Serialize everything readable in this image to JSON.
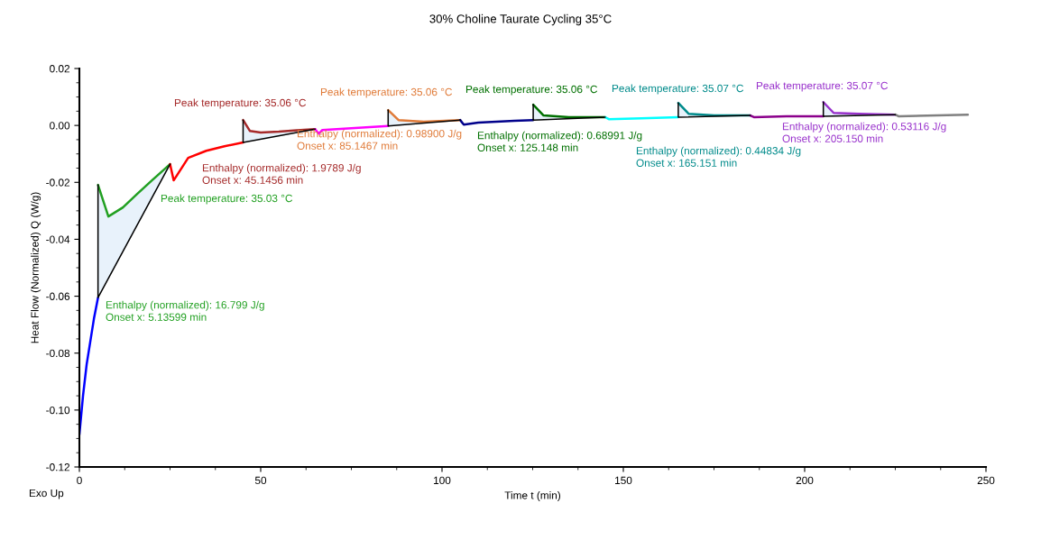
{
  "chart_data": {
    "type": "line",
    "title": "30% Choline Taurate Cycling 35°C",
    "xlabel": "Time t (min)",
    "ylabel": "Heat Flow (Normalized) Q (W/g)",
    "xlim": [
      0,
      250
    ],
    "xticks": [
      0,
      50,
      100,
      150,
      200,
      250
    ],
    "ylim": [
      -0.12,
      0.02
    ],
    "yticks": [
      {
        "value": -0.12,
        "label": "-0.12"
      },
      {
        "value": -0.1,
        "label": "-0.10"
      },
      {
        "value": -0.08,
        "label": "-0.08"
      },
      {
        "value": -0.06,
        "label": "-0.06"
      },
      {
        "value": -0.04,
        "label": "-0.04"
      },
      {
        "value": -0.02,
        "label": "-0.02"
      },
      {
        "value": 0,
        "label": "0.00"
      },
      {
        "value": 0.02,
        "label": "0.02"
      }
    ],
    "grid": false,
    "line_style": "solid",
    "marker": "none",
    "series": [
      {
        "color": "#0000ff",
        "x": [
          0,
          1,
          2,
          3,
          4,
          5.136
        ],
        "values": [
          -0.1086,
          -0.095,
          -0.084,
          -0.076,
          -0.068,
          -0.0605
        ]
      },
      {
        "color": "#22a022",
        "x": [
          5.136,
          8,
          12,
          16,
          20,
          25
        ],
        "values": [
          -0.0209,
          -0.032,
          -0.0288,
          -0.024,
          -0.0193,
          -0.0136
        ]
      },
      {
        "color": "#000000",
        "x": [
          5.136,
          5.136,
          25
        ],
        "values": [
          -0.0209,
          -0.0605,
          -0.0136
        ]
      },
      {
        "color": "#ff0000",
        "x": [
          25,
          26,
          30,
          35,
          40,
          45.146
        ],
        "values": [
          -0.0136,
          -0.0193,
          -0.0114,
          -0.0089,
          -0.0073,
          -0.006
        ]
      },
      {
        "color": "#a52a2a",
        "x": [
          45.146,
          47,
          50,
          55,
          60,
          65
        ],
        "values": [
          0.0019,
          -0.0019,
          -0.0025,
          -0.0022,
          -0.0017,
          -0.0013
        ]
      },
      {
        "color": "#000000",
        "x": [
          45.146,
          45.146,
          65
        ],
        "values": [
          0.0019,
          -0.006,
          -0.0013
        ]
      },
      {
        "color": "#ff00ff",
        "x": [
          65,
          66,
          67,
          75,
          85.147
        ],
        "values": [
          -0.0013,
          -0.0029,
          -0.0016,
          -0.001,
          -0.0002
        ]
      },
      {
        "color": "#e07b39",
        "x": [
          85.147,
          88,
          95,
          105
        ],
        "values": [
          0.0054,
          0.0019,
          0.0013,
          0.0019
        ]
      },
      {
        "color": "#000000",
        "x": [
          85.147,
          85.147,
          105
        ],
        "values": [
          0.0054,
          -0.0002,
          0.0019
        ]
      },
      {
        "color": "#00008b",
        "x": [
          105,
          106,
          110,
          120,
          125.148
        ],
        "values": [
          0.0019,
          0.0003,
          0.001,
          0.0016,
          0.0019
        ]
      },
      {
        "color": "#007000",
        "x": [
          125.148,
          128,
          135,
          145
        ],
        "values": [
          0.0073,
          0.0035,
          0.0029,
          0.0029
        ]
      },
      {
        "color": "#000000",
        "x": [
          125.148,
          125.148,
          145
        ],
        "values": [
          0.0073,
          0.0019,
          0.0029
        ]
      },
      {
        "color": "#00ffff",
        "x": [
          145,
          146,
          155,
          165.151
        ],
        "values": [
          0.0029,
          0.0022,
          0.0025,
          0.0029
        ]
      },
      {
        "color": "#008b8b",
        "x": [
          165.151,
          168,
          175,
          185
        ],
        "values": [
          0.0079,
          0.0041,
          0.0035,
          0.0035
        ]
      },
      {
        "color": "#000000",
        "x": [
          165.151,
          165.151,
          185
        ],
        "values": [
          0.0079,
          0.0029,
          0.0035
        ]
      },
      {
        "color": "#8b008b",
        "x": [
          185,
          186,
          195,
          205.15
        ],
        "values": [
          0.0035,
          0.0029,
          0.0032,
          0.0032
        ]
      },
      {
        "color": "#9932cc",
        "x": [
          205.15,
          208,
          215,
          225
        ],
        "values": [
          0.0082,
          0.0044,
          0.0041,
          0.0038
        ]
      },
      {
        "color": "#000000",
        "x": [
          205.15,
          205.15,
          225
        ],
        "values": [
          0.0082,
          0.0032,
          0.0038
        ]
      },
      {
        "color": "#808080",
        "x": [
          225,
          226,
          245
        ],
        "values": [
          0.0038,
          0.0032,
          0.0038
        ]
      }
    ],
    "annotations": [
      "Peak temperature: 35.03 °C",
      "Enthalpy (normalized): 16.799 J/g\nOnset x: 5.13599 min",
      "Peak temperature: 35.06 °C",
      "Enthalpy (normalized): 1.9789 J/g\nOnset x: 45.1456 min",
      "Peak temperature: 35.06 °C",
      "Enthalpy (normalized): 0.98900 J/g\nOnset x: 85.1467 min",
      "Peak temperature: 35.06 °C",
      "Enthalpy (normalized): 0.68991 J/g\nOnset x: 125.148 min",
      "Peak temperature: 35.07 °C",
      "Enthalpy (normalized): 0.44834 J/g\nOnset x: 165.151 min",
      "Peak temperature: 35.07 °C",
      "Enthalpy (normalized): 0.53116 J/g\nOnset x: 205.150 min",
      "Exo Up"
    ]
  }
}
